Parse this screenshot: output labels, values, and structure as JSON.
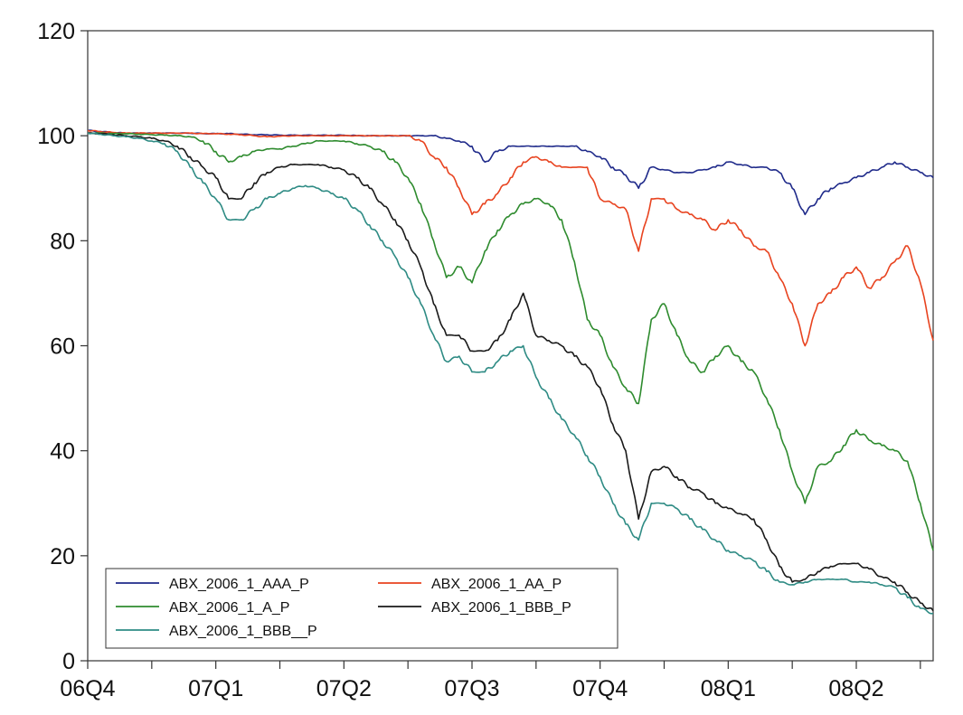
{
  "chart_data": {
    "type": "line",
    "title": "",
    "xlabel": "",
    "ylabel": "",
    "ylim": [
      0,
      120
    ],
    "yticks": [
      0,
      20,
      40,
      60,
      80,
      100,
      120
    ],
    "xlim": [
      0,
      6.6
    ],
    "x_tick_labels": [
      "06Q4",
      "07Q1",
      "07Q2",
      "07Q3",
      "07Q4",
      "08Q1",
      "08Q2"
    ],
    "grid": false,
    "legend_position": "bottom-left",
    "x": [
      0.0,
      0.1,
      0.2,
      0.3,
      0.4,
      0.5,
      0.6,
      0.7,
      0.8,
      0.9,
      1.0,
      1.1,
      1.2,
      1.3,
      1.4,
      1.5,
      1.6,
      1.7,
      1.8,
      1.9,
      2.0,
      2.1,
      2.2,
      2.3,
      2.4,
      2.5,
      2.6,
      2.7,
      2.8,
      2.9,
      3.0,
      3.1,
      3.2,
      3.3,
      3.4,
      3.5,
      3.6,
      3.7,
      3.8,
      3.9,
      4.0,
      4.1,
      4.2,
      4.3,
      4.4,
      4.5,
      4.6,
      4.7,
      4.8,
      4.9,
      5.0,
      5.1,
      5.2,
      5.3,
      5.4,
      5.5,
      5.6,
      5.7,
      5.8,
      5.9,
      6.0,
      6.1,
      6.2,
      6.3,
      6.4,
      6.5,
      6.6
    ],
    "series": [
      {
        "name": "ABX_2006_1_AAA_P",
        "color": "#1f2a8a",
        "values": [
          101,
          100.8,
          100.6,
          100.5,
          100.5,
          100.5,
          100.5,
          100.5,
          100.5,
          100.4,
          100.4,
          100.4,
          100.3,
          100.2,
          100.2,
          100.1,
          100.1,
          100.1,
          100.1,
          100.1,
          100.1,
          100,
          100,
          100,
          100,
          100,
          100,
          100,
          99.5,
          99,
          98,
          95,
          97,
          98,
          98,
          98,
          98,
          98,
          98,
          97,
          96,
          94,
          92.5,
          90,
          94,
          93.5,
          93,
          93,
          93.5,
          94,
          95,
          94.5,
          94,
          94,
          93,
          90,
          85,
          88,
          90,
          91,
          92,
          93,
          94,
          95,
          94,
          93,
          92
        ]
      },
      {
        "name": "ABX_2006_1_AA_P",
        "color": "#e8431f",
        "values": [
          101,
          100.8,
          100.6,
          100.5,
          100.5,
          100.5,
          100.5,
          100.5,
          100.5,
          100.4,
          100.4,
          100.3,
          100.2,
          100,
          99.8,
          99.9,
          100,
          100,
          100,
          100,
          100,
          100,
          100,
          100,
          100,
          100,
          99,
          96,
          94,
          90,
          85,
          87,
          89,
          92,
          95,
          96,
          95,
          94,
          94,
          94,
          88,
          87,
          86,
          78,
          88,
          88,
          86,
          85,
          84,
          82,
          84,
          82,
          79,
          78,
          73,
          68,
          60,
          68,
          70,
          73,
          75,
          71,
          73,
          76,
          79,
          72,
          61
        ]
      },
      {
        "name": "ABX_2006_1_A_P",
        "color": "#2e8b2e",
        "values": [
          100.5,
          100.5,
          100.4,
          100.4,
          100.3,
          100.2,
          100.1,
          100,
          99.8,
          99,
          97,
          95,
          96,
          97,
          97.5,
          97.5,
          98,
          98.5,
          99,
          99,
          99,
          98.5,
          98,
          97,
          95,
          92,
          87,
          80,
          73,
          75,
          72,
          78,
          82,
          85,
          87,
          88,
          87,
          84,
          76,
          65,
          62,
          56,
          52,
          49,
          65,
          68,
          62,
          57,
          55,
          58,
          60,
          57,
          55,
          50,
          44,
          36,
          30,
          37,
          38,
          41,
          44,
          42,
          41,
          40,
          38,
          30,
          21
        ]
      },
      {
        "name": "ABX_2006_1_BBB_P",
        "color": "#1a1a1a",
        "values": [
          100.5,
          100.4,
          100.2,
          100,
          99.8,
          99.5,
          99,
          98,
          96,
          94,
          92,
          88,
          88,
          91,
          93,
          94,
          94.5,
          94.5,
          94.5,
          94,
          93.5,
          92,
          90,
          87,
          84,
          80,
          75,
          68,
          62,
          62,
          59,
          59,
          61,
          65,
          70,
          62,
          61,
          60,
          58,
          56,
          52,
          45,
          40,
          27,
          36,
          37,
          35,
          33,
          32,
          30,
          29,
          28,
          27,
          23,
          18,
          15,
          15.5,
          17,
          18,
          18.5,
          18.5,
          17.5,
          16,
          15,
          13,
          11,
          9.5
        ]
      },
      {
        "name": "ABX_2006_1_BBB__P",
        "color": "#2e8b84",
        "values": [
          100.5,
          100.3,
          100,
          99.8,
          99.5,
          99,
          98.5,
          97,
          94,
          91,
          88,
          84,
          84,
          86,
          88,
          89,
          90,
          90.5,
          90,
          89,
          88,
          86,
          83,
          80,
          77,
          73,
          68,
          62,
          57,
          58,
          55,
          55,
          57,
          59,
          60,
          54,
          50,
          46,
          43,
          39,
          35,
          30,
          26,
          23,
          30,
          30,
          29,
          27,
          25,
          23,
          21,
          20,
          19,
          17,
          15,
          14.5,
          15,
          15.5,
          15.5,
          15.5,
          15,
          15,
          14.5,
          14,
          12,
          10,
          9
        ]
      }
    ]
  }
}
